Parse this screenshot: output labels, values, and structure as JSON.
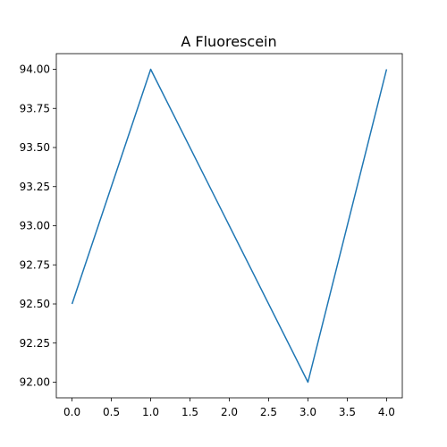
{
  "chart_data": {
    "type": "line",
    "title": "A Fluorescein",
    "xlabel": "",
    "ylabel": "",
    "xlim": [
      -0.2,
      4.2
    ],
    "ylim": [
      91.9,
      94.1
    ],
    "grid": false,
    "x": [
      0,
      1,
      2,
      3,
      4
    ],
    "series": [
      {
        "values": [
          92.5,
          94.0,
          93.0,
          92.0,
          94.0
        ],
        "color": "#1f77b4"
      }
    ],
    "xticks": [
      {
        "value": 0.0,
        "label": "0.0"
      },
      {
        "value": 0.5,
        "label": "0.5"
      },
      {
        "value": 1.0,
        "label": "1.0"
      },
      {
        "value": 1.5,
        "label": "1.5"
      },
      {
        "value": 2.0,
        "label": "2.0"
      },
      {
        "value": 2.5,
        "label": "2.5"
      },
      {
        "value": 3.0,
        "label": "3.0"
      },
      {
        "value": 3.5,
        "label": "3.5"
      },
      {
        "value": 4.0,
        "label": "4.0"
      }
    ],
    "yticks": [
      {
        "value": 92.0,
        "label": "92.00"
      },
      {
        "value": 92.25,
        "label": "92.25"
      },
      {
        "value": 92.5,
        "label": "92.50"
      },
      {
        "value": 92.75,
        "label": "92.75"
      },
      {
        "value": 93.0,
        "label": "93.00"
      },
      {
        "value": 93.25,
        "label": "93.25"
      },
      {
        "value": 93.5,
        "label": "93.50"
      },
      {
        "value": 93.75,
        "label": "93.75"
      },
      {
        "value": 94.0,
        "label": "94.00"
      }
    ]
  }
}
